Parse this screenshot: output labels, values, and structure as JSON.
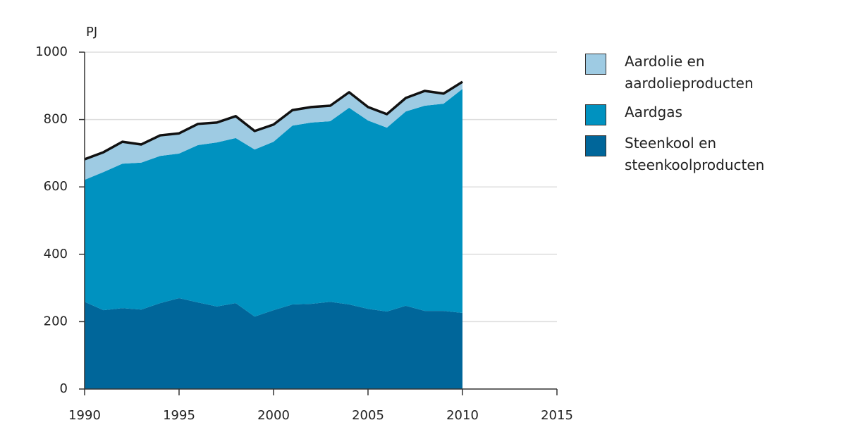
{
  "chart_data": {
    "type": "stacked-area",
    "y_label": "PJ",
    "x": [
      1990,
      1991,
      1992,
      1993,
      1994,
      1995,
      1996,
      1997,
      1998,
      1999,
      2000,
      2001,
      2002,
      2003,
      2004,
      2005,
      2006,
      2007,
      2008,
      2009,
      2010
    ],
    "series": [
      {
        "name": "Steenkool en steenkoolproducten",
        "color": "#00669a",
        "values": [
          259,
          234,
          240,
          236,
          255,
          270,
          257,
          245,
          255,
          215,
          234,
          251,
          253,
          259,
          251,
          238,
          230,
          247,
          232,
          232,
          226
        ]
      },
      {
        "name": "Aardgas",
        "color": "#0092c0",
        "values": [
          362,
          410,
          429,
          436,
          437,
          429,
          467,
          487,
          490,
          496,
          500,
          531,
          538,
          536,
          584,
          559,
          546,
          577,
          609,
          615,
          665
        ]
      },
      {
        "name": "Aardolie en aardolieproducten",
        "color": "#9ecbe3",
        "values": [
          61,
          59,
          65,
          54,
          61,
          60,
          63,
          59,
          65,
          55,
          51,
          46,
          46,
          46,
          46,
          40,
          40,
          40,
          44,
          30,
          21
        ]
      }
    ],
    "xlim": [
      1990,
      2015
    ],
    "xticks": [
      1990,
      1995,
      2000,
      2005,
      2010,
      2015
    ],
    "ylim": [
      0,
      1000
    ],
    "yticks": [
      0,
      200,
      400,
      600,
      800,
      1000
    ],
    "grid": true
  }
}
